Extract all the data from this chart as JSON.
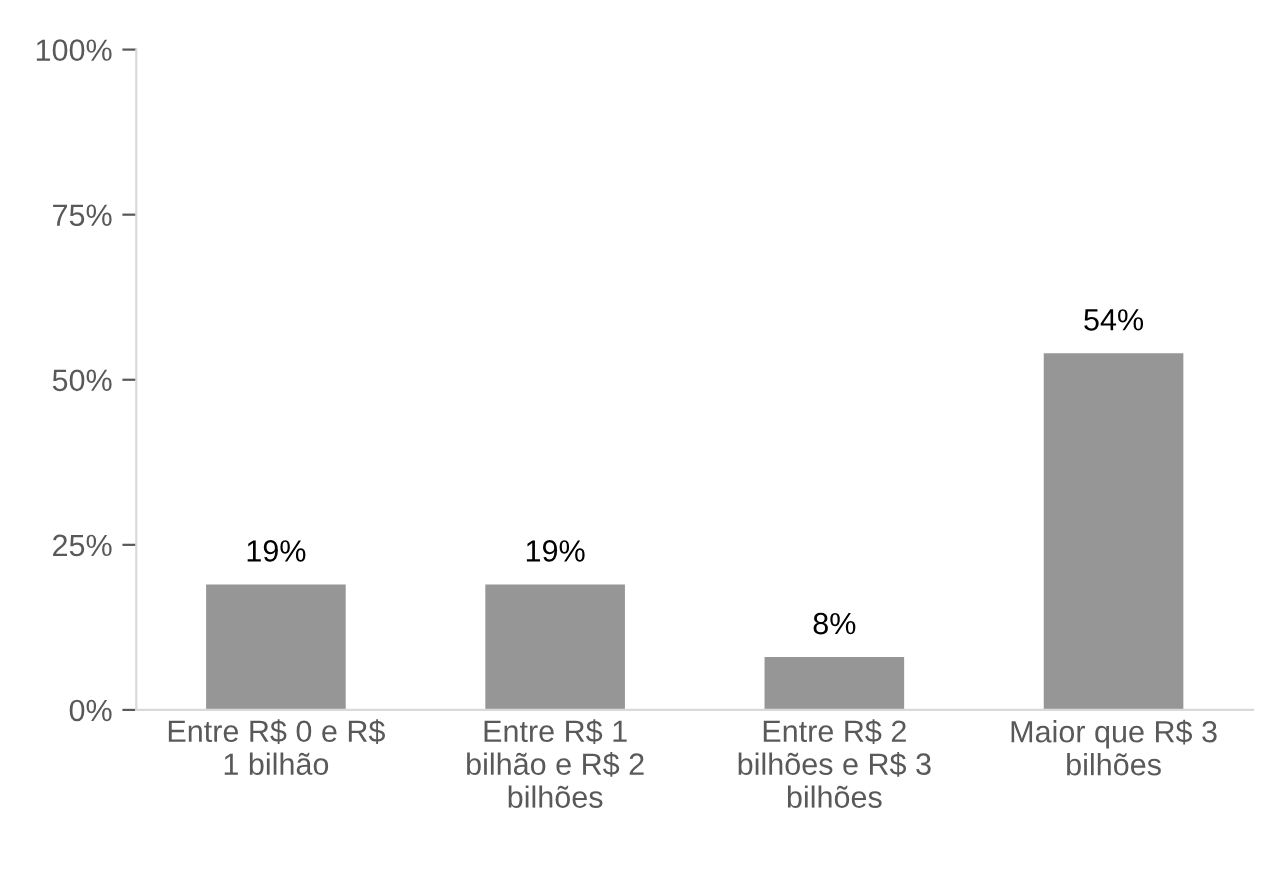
{
  "chart_data": {
    "type": "bar",
    "categories": [
      "Entre R$ 0 e R$\n1 bilhão",
      "Entre R$ 1\nbilhão e R$ 2\nbilhões",
      "Entre R$ 2\nbilhões e R$ 3\nbilhões",
      "Maior que R$ 3\nbilhões"
    ],
    "values": [
      19,
      19,
      8,
      54
    ],
    "value_labels": [
      "19%",
      "19%",
      "8%",
      "54%"
    ],
    "color": "#969696",
    "ylim": [
      0,
      100
    ],
    "yticks": [
      {
        "value": 0,
        "label": "0%"
      },
      {
        "value": 25,
        "label": "25%"
      },
      {
        "value": 50,
        "label": "50%"
      },
      {
        "value": 75,
        "label": "75%"
      },
      {
        "value": 100,
        "label": "100%"
      }
    ],
    "grid": false,
    "legend": false
  }
}
